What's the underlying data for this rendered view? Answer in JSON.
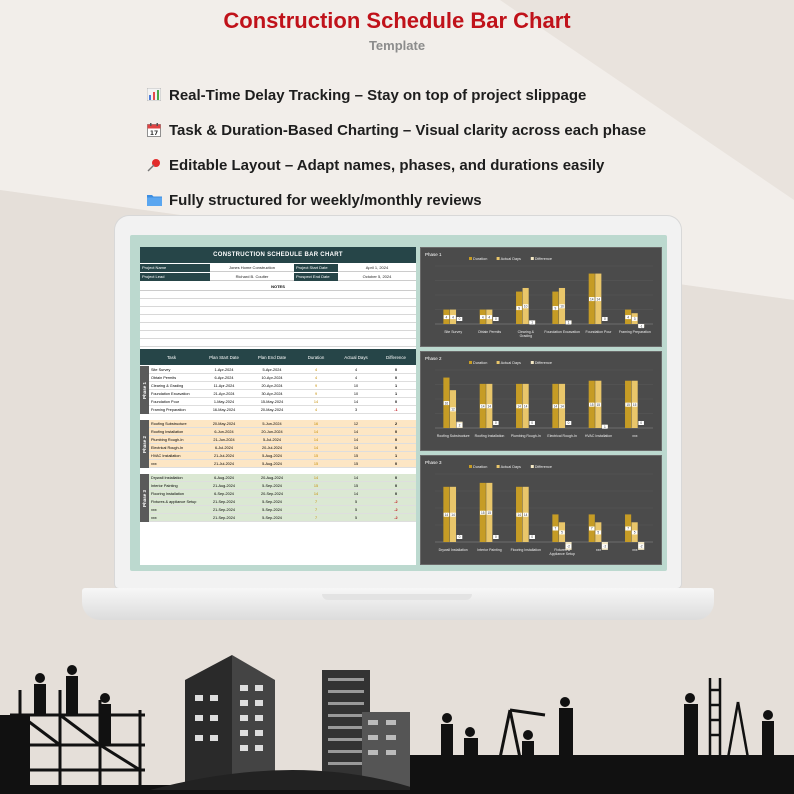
{
  "header": {
    "title": "Construction Schedule Bar Chart",
    "subtitle": "Template"
  },
  "features": [
    {
      "icon": "bar-chart-icon",
      "text": "Real-Time Delay Tracking – Stay on top of project slippage"
    },
    {
      "icon": "calendar-icon",
      "text": "Task & Duration-Based Charting – Visual clarity across each phase"
    },
    {
      "icon": "pushpin-icon",
      "text": "Editable Layout – Adapt names, phases, and durations easily"
    },
    {
      "icon": "folder-icon",
      "text": "Fully structured for weekly/monthly reviews"
    }
  ],
  "sheet": {
    "title": "CONSTRUCTION SCHEDULE BAR CHART",
    "project_name_label": "Project Name",
    "project_name": "Jones Home Construction",
    "project_lead_label": "Project Lead",
    "project_lead": "Richard B. Coulter",
    "start_date_label": "Project Start Date",
    "start_date": "April 1, 2024",
    "end_date_label": "Prospect End Date",
    "end_date": "October 5, 2024",
    "notes_label": "NOTES",
    "columns": [
      "Task",
      "Plan Start Date",
      "Plan End Date",
      "Duration",
      "Actual Days",
      "Difference"
    ],
    "phases": [
      {
        "label": "Phase 1",
        "color": "#ffffff",
        "rows": [
          [
            "Site Survey",
            "1-Apr-2024",
            "5-Apr-2024",
            "4",
            "4",
            "0"
          ],
          [
            "Obtain Permits",
            "6-Apr-2024",
            "10-Apr-2024",
            "4",
            "4",
            "0"
          ],
          [
            "Clearing & Grading",
            "11-Apr-2024",
            "20-Apr-2024",
            "9",
            "10",
            "1"
          ],
          [
            "Foundation Excavation",
            "21-Apr-2024",
            "30-Apr-2024",
            "9",
            "10",
            "1"
          ],
          [
            "Foundation Pour",
            "1-May-2024",
            "15-May-2024",
            "14",
            "14",
            "0"
          ],
          [
            "Framing Preparation",
            "16-May-2024",
            "20-May-2024",
            "4",
            "3",
            "-1"
          ]
        ]
      },
      {
        "label": "Phase 2",
        "color": "#fde6c4",
        "rows": [
          [
            "Roofing Substructure",
            "20-May-2024",
            "5-Jun-2024",
            "16",
            "12",
            "2"
          ],
          [
            "Roofing Installation",
            "6-Jun-2024",
            "20-Jun-2024",
            "14",
            "14",
            "0"
          ],
          [
            "Plumbing Rough-In",
            "21-Jun-2024",
            "5-Jul-2024",
            "14",
            "14",
            "0"
          ],
          [
            "Electrical Rough-In",
            "6-Jul-2024",
            "20-Jul-2024",
            "14",
            "14",
            "0"
          ],
          [
            "HVAC Installation",
            "21-Jul-2024",
            "5-Aug-2024",
            "15",
            "15",
            "1"
          ],
          [
            "xxx",
            "21-Jul-2024",
            "5-Aug-2024",
            "15",
            "15",
            "0"
          ]
        ]
      },
      {
        "label": "Phase 3",
        "color": "#dbe8d3",
        "rows": [
          [
            "Drywall Installation",
            "6-Aug-2024",
            "20-Aug-2024",
            "14",
            "14",
            "0"
          ],
          [
            "Interior Painting",
            "21-Aug-2024",
            "5-Sep-2024",
            "15",
            "15",
            "0"
          ],
          [
            "Flooring Installation",
            "6-Sep-2024",
            "20-Sep-2024",
            "14",
            "14",
            "0"
          ],
          [
            "Fixtures & appliance Setup",
            "21-Sep-2024",
            "5-Sep-2024",
            "7",
            "5",
            "-2"
          ],
          [
            "xxx",
            "21-Sep-2024",
            "5-Sep-2024",
            "7",
            "5",
            "-2"
          ],
          [
            "xxx",
            "21-Sep-2024",
            "5-Sep-2024",
            "7",
            "5",
            "-2"
          ]
        ]
      }
    ]
  },
  "chart_data": [
    {
      "type": "bar",
      "title": "Phase 1",
      "legend": [
        "Duration",
        "Actual Days",
        "Difference"
      ],
      "categories": [
        "Site Survey",
        "Obtain Permits",
        "Clearing & Grading",
        "Foundation Excavation",
        "Foundation Pour",
        "Framing Preparation"
      ],
      "series": [
        {
          "name": "Duration",
          "values": [
            4,
            4,
            9,
            9,
            14,
            4
          ]
        },
        {
          "name": "Actual Days",
          "values": [
            4,
            4,
            10,
            10,
            14,
            3
          ]
        },
        {
          "name": "Difference",
          "values": [
            0,
            0,
            1,
            1,
            0,
            -1
          ]
        }
      ]
    },
    {
      "type": "bar",
      "title": "Phase 2",
      "legend": [
        "Duration",
        "Actual Days",
        "Difference"
      ],
      "categories": [
        "Roofing Substructure",
        "Roofing Installation",
        "Plumbing Rough-In",
        "Electrical Rough-In",
        "HVAC Installation",
        "xxx"
      ],
      "series": [
        {
          "name": "Duration",
          "values": [
            16,
            14,
            14,
            14,
            15,
            15
          ]
        },
        {
          "name": "Actual Days",
          "values": [
            12,
            14,
            14,
            14,
            15,
            15
          ]
        },
        {
          "name": "Difference",
          "values": [
            2,
            0,
            0,
            0,
            1,
            0
          ]
        }
      ]
    },
    {
      "type": "bar",
      "title": "Phase 3",
      "legend": [
        "Duration",
        "Actual Days",
        "Difference"
      ],
      "categories": [
        "Drywall Installation",
        "Interior Painting",
        "Flooring Installation",
        "Fixtures & Appliance Setup",
        "xxx",
        "xxx"
      ],
      "series": [
        {
          "name": "Duration",
          "values": [
            14,
            15,
            14,
            7,
            7,
            7
          ]
        },
        {
          "name": "Actual Days",
          "values": [
            14,
            15,
            14,
            5,
            5,
            5
          ]
        },
        {
          "name": "Difference",
          "values": [
            0,
            0,
            0,
            -2,
            -2,
            -2
          ]
        }
      ]
    }
  ],
  "colors": {
    "title_red": "#c0121a",
    "sheet_header": "#264548",
    "bar_duration": "#c69c25",
    "bar_actual": "#e9c66a",
    "bar_diff": "#f3e7c4",
    "chart_bg": "#4b4b4b"
  }
}
